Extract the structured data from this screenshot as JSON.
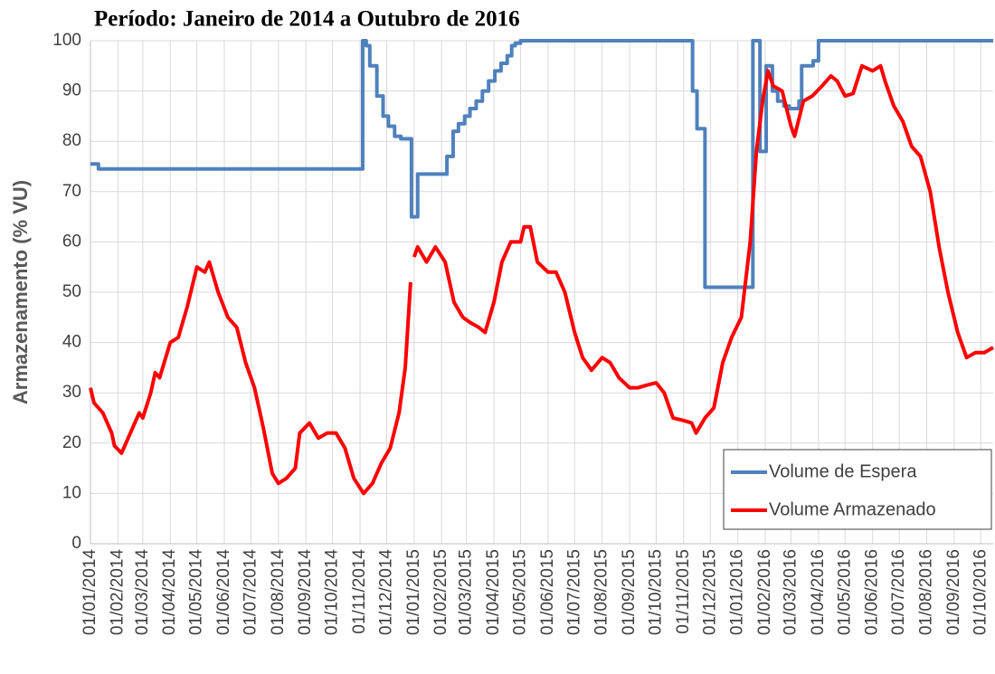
{
  "chart_data": {
    "type": "line",
    "title": "Período: Janeiro de 2014 a Outubro de 2016",
    "ylabel": "Armazenamento (% VU)",
    "ylim": [
      0,
      100
    ],
    "yticks": [
      0,
      10,
      20,
      30,
      40,
      50,
      60,
      70,
      80,
      90,
      100
    ],
    "xlim": [
      "01/01/2014",
      "15/10/2016"
    ],
    "xticks": [
      "01/01/2014",
      "01/02/2014",
      "01/03/2014",
      "01/04/2014",
      "01/05/2014",
      "01/06/2014",
      "01/07/2014",
      "01/08/2014",
      "01/09/2014",
      "01/10/2014",
      "01/11/2014",
      "01/12/2014",
      "01/01/2015",
      "01/02/2015",
      "01/03/2015",
      "01/04/2015",
      "01/05/2015",
      "01/06/2015",
      "01/07/2015",
      "01/08/2015",
      "01/09/2015",
      "01/10/2015",
      "01/11/2015",
      "01/12/2015",
      "01/01/2016",
      "01/02/2016",
      "01/03/2016",
      "01/04/2016",
      "01/05/2016",
      "01/06/2016",
      "01/07/2016",
      "01/08/2016",
      "01/09/2016",
      "01/10/2016"
    ],
    "grid": true,
    "legend": "lower right",
    "series": [
      {
        "name": "Volume de Espera",
        "color": "#4f81bd",
        "step": true,
        "x": [
          "01/01/2014",
          "10/01/2014",
          "04/11/2014",
          "08/11/2014",
          "12/11/2014",
          "20/11/2014",
          "27/11/2014",
          "03/12/2014",
          "10/12/2014",
          "17/12/2014",
          "29/12/2014",
          "05/01/2015",
          "07/02/2015",
          "14/02/2015",
          "20/02/2015",
          "27/02/2015",
          "05/03/2015",
          "12/03/2015",
          "19/03/2015",
          "26/03/2015",
          "02/04/2015",
          "09/04/2015",
          "16/04/2015",
          "21/04/2015",
          "25/04/2015",
          "01/05/2015",
          "11/11/2015",
          "16/11/2015",
          "25/11/2015",
          "18/01/2016",
          "26/01/2016",
          "02/02/2016",
          "09/02/2016",
          "15/02/2016",
          "22/02/2016",
          "28/02/2016",
          "10/03/2016",
          "13/03/2016",
          "26/03/2016",
          "01/04/2016",
          "15/10/2016"
        ],
        "values": [
          75.5,
          74.5,
          100,
          99,
          95,
          89,
          85,
          83,
          81,
          80.5,
          65,
          73.5,
          77,
          82,
          83.5,
          85,
          86.5,
          88,
          90,
          92,
          94,
          95.5,
          97,
          99,
          99.5,
          100,
          90,
          82.5,
          51,
          100,
          78,
          95,
          90,
          88,
          87,
          86.5,
          88,
          95,
          96,
          100,
          100
        ]
      },
      {
        "name": "Volume Armazenado",
        "color": "#ff0000",
        "step": false,
        "x": [
          "01/01/2014",
          "05/01/2014",
          "15/01/2014",
          "25/01/2014",
          "28/01/2014",
          "05/02/2014",
          "15/02/2014",
          "25/02/2014",
          "01/03/2014",
          "10/03/2014",
          "15/03/2014",
          "20/03/2014",
          "01/04/2014",
          "10/04/2014",
          "20/04/2014",
          "01/05/2014",
          "10/05/2014",
          "15/05/2014",
          "25/05/2014",
          "05/06/2014",
          "15/06/2014",
          "25/06/2014",
          "05/07/2014",
          "15/07/2014",
          "25/07/2014",
          "01/08/2014",
          "10/08/2014",
          "20/08/2014",
          "25/08/2014",
          "05/09/2014",
          "15/09/2014",
          "25/09/2014",
          "05/10/2014",
          "15/10/2014",
          "25/10/2014",
          "05/11/2014",
          "15/11/2014",
          "25/11/2014",
          "05/12/2014",
          "15/12/2014",
          "22/12/2014",
          "28/12/2014",
          "30/12/2014",
          "01/01/2015",
          "05/01/2015",
          "15/01/2015",
          "25/01/2015",
          "05/02/2015",
          "15/02/2015",
          "25/02/2015",
          "05/03/2015",
          "15/03/2015",
          "22/03/2015",
          "01/04/2015",
          "10/04/2015",
          "20/04/2015",
          "01/05/2015",
          "05/05/2015",
          "12/05/2015",
          "20/05/2015",
          "01/06/2015",
          "10/06/2015",
          "20/06/2015",
          "01/07/2015",
          "10/07/2015",
          "20/07/2015",
          "01/08/2015",
          "10/08/2015",
          "20/08/2015",
          "01/09/2015",
          "10/09/2015",
          "20/09/2015",
          "01/10/2015",
          "10/10/2015",
          "20/10/2015",
          "01/11/2015",
          "10/11/2015",
          "15/11/2015",
          "25/11/2015",
          "05/12/2015",
          "15/12/2015",
          "25/12/2015",
          "05/01/2016",
          "15/01/2016",
          "22/01/2016",
          "29/01/2016",
          "04/02/2016",
          "10/02/2016",
          "20/02/2016",
          "01/03/2016",
          "05/03/2016",
          "15/03/2016",
          "25/03/2016",
          "05/04/2016",
          "15/04/2016",
          "22/04/2016",
          "01/05/2016",
          "10/05/2016",
          "20/05/2016",
          "01/06/2016",
          "10/06/2016",
          "15/06/2016",
          "25/06/2016",
          "05/07/2016",
          "15/07/2016",
          "25/07/2016",
          "05/08/2016",
          "15/08/2016",
          "25/08/2016",
          "05/09/2016",
          "15/09/2016",
          "25/09/2016",
          "05/10/2016",
          "15/10/2016"
        ],
        "values": [
          31,
          28,
          26,
          22,
          19.5,
          18,
          22,
          26,
          25,
          30,
          34,
          33,
          40,
          41,
          47,
          55,
          54,
          56,
          50,
          45,
          43,
          36,
          31,
          23,
          14,
          12,
          13,
          15,
          22,
          24,
          21,
          22,
          22,
          19,
          13,
          10,
          12,
          16,
          19,
          26,
          35,
          52,
          null,
          57,
          59,
          56,
          59,
          56,
          48,
          45,
          44,
          43,
          42,
          48,
          56,
          60,
          60,
          63,
          63,
          56,
          54,
          54,
          50,
          42,
          37,
          34.5,
          37,
          36,
          33,
          31,
          31,
          31.5,
          32,
          30,
          25,
          24.5,
          24,
          22,
          25,
          27,
          36,
          41,
          45,
          60,
          78,
          88,
          94,
          91,
          90,
          83,
          81,
          88,
          89,
          91,
          93,
          92,
          89,
          89.5,
          95,
          94,
          95,
          92,
          87,
          84,
          79,
          77,
          70,
          59,
          50,
          42,
          37,
          38,
          38,
          39
        ]
      }
    ]
  }
}
